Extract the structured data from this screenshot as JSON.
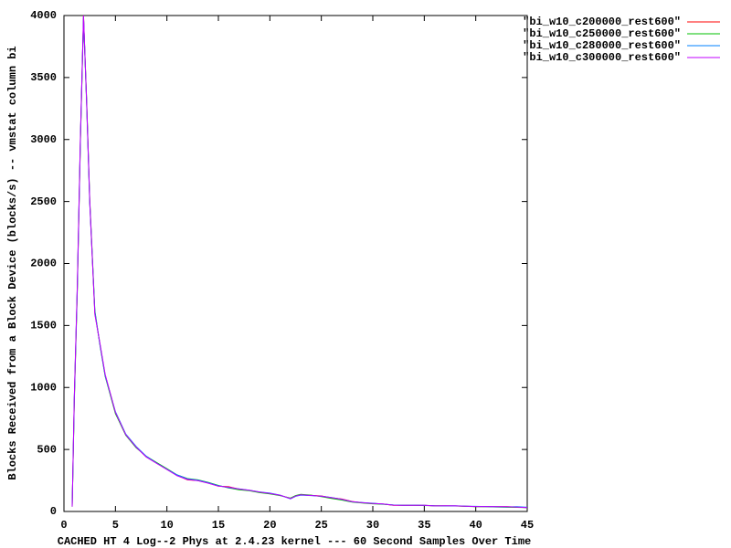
{
  "chart_data": {
    "type": "line",
    "x_label": "CACHED HT 4 Log--2 Phys at 2.4.23 kernel --- 60 Second Samples Over Time",
    "y_label": "Blocks Received from a Block Device (blocks/s) -- vmstat column bi",
    "x": [
      0.8,
      1,
      1.3,
      1.6,
      1.9,
      2.2,
      2.5,
      3,
      3.5,
      4,
      5,
      6,
      7,
      8,
      9,
      10,
      11,
      12,
      13,
      14,
      15,
      16,
      17,
      18,
      19,
      20,
      21,
      22,
      22.5,
      23,
      24,
      25,
      26,
      27,
      28,
      29,
      30,
      31,
      32,
      33,
      34,
      35,
      36,
      37,
      38,
      39,
      40,
      41,
      42,
      43,
      44,
      45
    ],
    "series": [
      {
        "name": "\"bi_w10_c200000_rest600\"",
        "color": "#ff0000",
        "values": [
          40,
          900,
          1800,
          3000,
          4000,
          3300,
          2500,
          1600,
          1350,
          1100,
          800,
          620,
          520,
          440,
          390,
          340,
          290,
          255,
          250,
          230,
          205,
          200,
          180,
          170,
          155,
          145,
          130,
          105,
          125,
          135,
          130,
          125,
          110,
          100,
          80,
          70,
          65,
          60,
          50,
          50,
          50,
          50,
          45,
          45,
          45,
          42,
          40,
          40,
          38,
          38,
          35,
          32
        ]
      },
      {
        "name": "\"bi_w10_c250000_rest600\"",
        "color": "#00c000",
        "values": [
          40,
          880,
          1780,
          2980,
          3980,
          3320,
          2520,
          1620,
          1340,
          1090,
          790,
          615,
          515,
          445,
          395,
          345,
          295,
          265,
          255,
          235,
          210,
          190,
          175,
          168,
          152,
          142,
          128,
          108,
          128,
          138,
          132,
          120,
          105,
          92,
          75,
          68,
          62,
          58,
          52,
          50,
          49,
          48,
          46,
          45,
          44,
          41,
          39,
          38,
          36,
          34,
          33,
          31
        ]
      },
      {
        "name": "\"bi_w10_c280000_rest600\"",
        "color": "#0080ff",
        "values": [
          40,
          910,
          1810,
          3010,
          3990,
          3290,
          2490,
          1610,
          1345,
          1095,
          805,
          625,
          525,
          445,
          390,
          340,
          295,
          262,
          252,
          232,
          208,
          192,
          182,
          172,
          158,
          148,
          132,
          102,
          122,
          132,
          128,
          124,
          112,
          98,
          78,
          72,
          66,
          60,
          52,
          50,
          51,
          50,
          46,
          45,
          46,
          43,
          41,
          40,
          39,
          37,
          38,
          34
        ]
      },
      {
        "name": "\"bi_w10_c300000_rest600\"",
        "color": "#c000ff",
        "values": [
          40,
          920,
          1820,
          3020,
          4000,
          3310,
          2510,
          1590,
          1355,
          1105,
          800,
          620,
          520,
          440,
          388,
          338,
          288,
          258,
          248,
          228,
          204,
          196,
          181,
          171,
          156,
          146,
          131,
          104,
          124,
          134,
          129,
          124,
          111,
          99,
          79,
          71,
          64,
          61,
          51,
          50,
          50,
          50,
          45,
          46,
          45,
          42,
          40,
          40,
          38,
          38,
          35,
          32
        ]
      }
    ],
    "xlim": [
      0,
      45
    ],
    "xticks": [
      0,
      5,
      10,
      15,
      20,
      25,
      30,
      35,
      40,
      45
    ],
    "ylim": [
      0,
      4000
    ],
    "yticks": [
      0,
      500,
      1000,
      1500,
      2000,
      2500,
      3000,
      3500,
      4000
    ],
    "legend": "outside-right"
  }
}
